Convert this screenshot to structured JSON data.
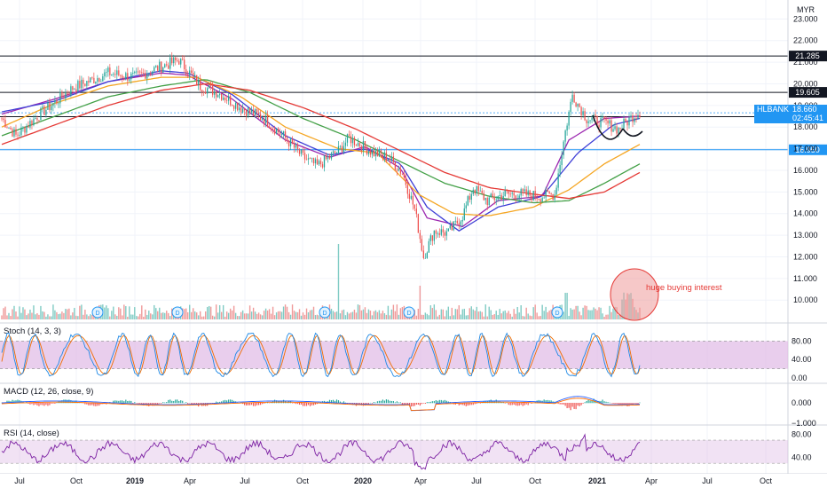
{
  "currency": "MYR",
  "colors": {
    "up": "#26a69a",
    "down": "#ef5350",
    "ma_fast": "#9c27b0",
    "ma_blue": "#3f3fd6",
    "ma_orange": "#f5a623",
    "ma_green": "#43a047",
    "ma_red": "#e53935",
    "hline_black": "#131722",
    "hline_blue": "#2196f3",
    "osc_band": "#e1bee7",
    "osc_line": "#7b1fa2",
    "ticker_tag": "#2196f3",
    "annotation": "#e53935"
  },
  "chart_data": {
    "type": "candlestick",
    "symbol": "HLBANK",
    "last_price": "18.660",
    "countdown": "02:45:41",
    "y_ticks": [
      "23.000",
      "22.000",
      "21.000",
      "20.000",
      "19.000",
      "18.000",
      "17.000",
      "16.000",
      "15.000",
      "14.000",
      "13.000",
      "12.000",
      "11.000",
      "10.000"
    ],
    "ylim": [
      9.6,
      23.3
    ],
    "x_ticks": [
      "Jul",
      "Oct",
      "2019",
      "Apr",
      "Jul",
      "Oct",
      "2020",
      "Apr",
      "Jul",
      "Oct",
      "2021",
      "Apr",
      "Jul",
      "Oct"
    ],
    "price_path": [
      [
        0,
        18.4
      ],
      [
        8,
        17.6
      ],
      [
        20,
        18.5
      ],
      [
        40,
        19.8
      ],
      [
        60,
        20.5
      ],
      [
        75,
        20.3
      ],
      [
        90,
        20.8
      ],
      [
        100,
        21.1
      ],
      [
        105,
        20.6
      ],
      [
        112,
        19.9
      ],
      [
        122,
        19.6
      ],
      [
        135,
        18.9
      ],
      [
        148,
        18.4
      ],
      [
        160,
        17.5
      ],
      [
        170,
        16.6
      ],
      [
        178,
        16.2
      ],
      [
        190,
        16.9
      ],
      [
        196,
        17.5
      ],
      [
        202,
        17.2
      ],
      [
        210,
        16.8
      ],
      [
        218,
        16.6
      ],
      [
        226,
        15.9
      ],
      [
        233,
        14.2
      ],
      [
        238,
        12.0
      ],
      [
        244,
        13.2
      ],
      [
        252,
        13.1
      ],
      [
        260,
        13.9
      ],
      [
        266,
        15.2
      ],
      [
        274,
        14.6
      ],
      [
        284,
        14.9
      ],
      [
        294,
        14.9
      ],
      [
        304,
        14.8
      ],
      [
        312,
        14.9
      ],
      [
        318,
        17.8
      ],
      [
        322,
        19.5
      ],
      [
        330,
        18.4
      ],
      [
        340,
        18.2
      ],
      [
        348,
        17.9
      ],
      [
        356,
        18.5
      ],
      [
        360,
        18.7
      ]
    ],
    "horizontal_levels": [
      {
        "label": "21.285",
        "value": 21.285,
        "color": "black"
      },
      {
        "label": "19.605",
        "value": 19.605,
        "color": "black"
      },
      {
        "label": "18.480",
        "value": 18.48,
        "color": "black"
      },
      {
        "label": "16.950",
        "value": 16.95,
        "color": "blue"
      }
    ],
    "moving_averages": [
      {
        "name": "ma_fast",
        "color": "#9c27b0",
        "points": [
          [
            0,
            18.6
          ],
          [
            30,
            19.3
          ],
          [
            60,
            20.1
          ],
          [
            90,
            20.5
          ],
          [
            105,
            20.4
          ],
          [
            130,
            19.3
          ],
          [
            160,
            17.4
          ],
          [
            185,
            16.6
          ],
          [
            205,
            17.1
          ],
          [
            225,
            16.1
          ],
          [
            240,
            13.8
          ],
          [
            260,
            13.4
          ],
          [
            280,
            14.6
          ],
          [
            305,
            14.8
          ],
          [
            320,
            17.4
          ],
          [
            340,
            18.4
          ],
          [
            360,
            18.5
          ]
        ]
      },
      {
        "name": "ma_blue",
        "color": "#3f3fd6",
        "points": [
          [
            0,
            18.7
          ],
          [
            30,
            19.2
          ],
          [
            60,
            20.1
          ],
          [
            90,
            20.6
          ],
          [
            105,
            20.5
          ],
          [
            130,
            19.5
          ],
          [
            160,
            17.6
          ],
          [
            185,
            16.7
          ],
          [
            205,
            17.0
          ],
          [
            225,
            16.3
          ],
          [
            240,
            14.3
          ],
          [
            258,
            13.2
          ],
          [
            280,
            14.3
          ],
          [
            305,
            14.8
          ],
          [
            325,
            16.8
          ],
          [
            345,
            18.1
          ],
          [
            360,
            18.4
          ]
        ]
      },
      {
        "name": "ma_orange",
        "color": "#f5a623",
        "points": [
          [
            0,
            18.0
          ],
          [
            30,
            19.1
          ],
          [
            60,
            19.9
          ],
          [
            90,
            20.3
          ],
          [
            110,
            20.3
          ],
          [
            135,
            19.4
          ],
          [
            160,
            18.0
          ],
          [
            190,
            17.0
          ],
          [
            212,
            16.8
          ],
          [
            235,
            14.9
          ],
          [
            255,
            14.0
          ],
          [
            275,
            13.9
          ],
          [
            300,
            14.3
          ],
          [
            320,
            15.1
          ],
          [
            340,
            16.3
          ],
          [
            360,
            17.2
          ]
        ]
      },
      {
        "name": "ma_green",
        "color": "#43a047",
        "points": [
          [
            0,
            17.6
          ],
          [
            30,
            18.5
          ],
          [
            60,
            19.4
          ],
          [
            90,
            19.9
          ],
          [
            115,
            20.2
          ],
          [
            140,
            19.6
          ],
          [
            170,
            18.4
          ],
          [
            200,
            17.4
          ],
          [
            225,
            16.4
          ],
          [
            250,
            15.4
          ],
          [
            275,
            14.8
          ],
          [
            300,
            14.5
          ],
          [
            320,
            14.6
          ],
          [
            340,
            15.4
          ],
          [
            360,
            16.3
          ]
        ]
      },
      {
        "name": "ma_red",
        "color": "#e53935",
        "points": [
          [
            0,
            17.2
          ],
          [
            30,
            18.1
          ],
          [
            60,
            19.0
          ],
          [
            90,
            19.7
          ],
          [
            115,
            20.0
          ],
          [
            140,
            19.7
          ],
          [
            170,
            18.9
          ],
          [
            200,
            17.9
          ],
          [
            225,
            16.9
          ],
          [
            250,
            15.9
          ],
          [
            275,
            15.2
          ],
          [
            300,
            14.9
          ],
          [
            320,
            14.7
          ],
          [
            340,
            15.0
          ],
          [
            360,
            15.9
          ]
        ]
      }
    ],
    "dividend_markers": [
      "D",
      "D",
      "D",
      "D",
      "D"
    ],
    "annotation": "huge buying interest",
    "panes": [
      {
        "id": "stoch",
        "title": "Stoch (14, 3, 3)",
        "y_ticks": [
          "80.00",
          "40.00",
          "0.00"
        ],
        "band": [
          20,
          80
        ]
      },
      {
        "id": "macd",
        "title": "MACD (12, 26, close, 9)",
        "y_ticks": [
          "0.000",
          "-1.000"
        ]
      },
      {
        "id": "rsi",
        "title": "RSI (14, close)",
        "y_ticks": [
          "80.00",
          "40.00"
        ],
        "band": [
          30,
          70
        ]
      }
    ]
  }
}
